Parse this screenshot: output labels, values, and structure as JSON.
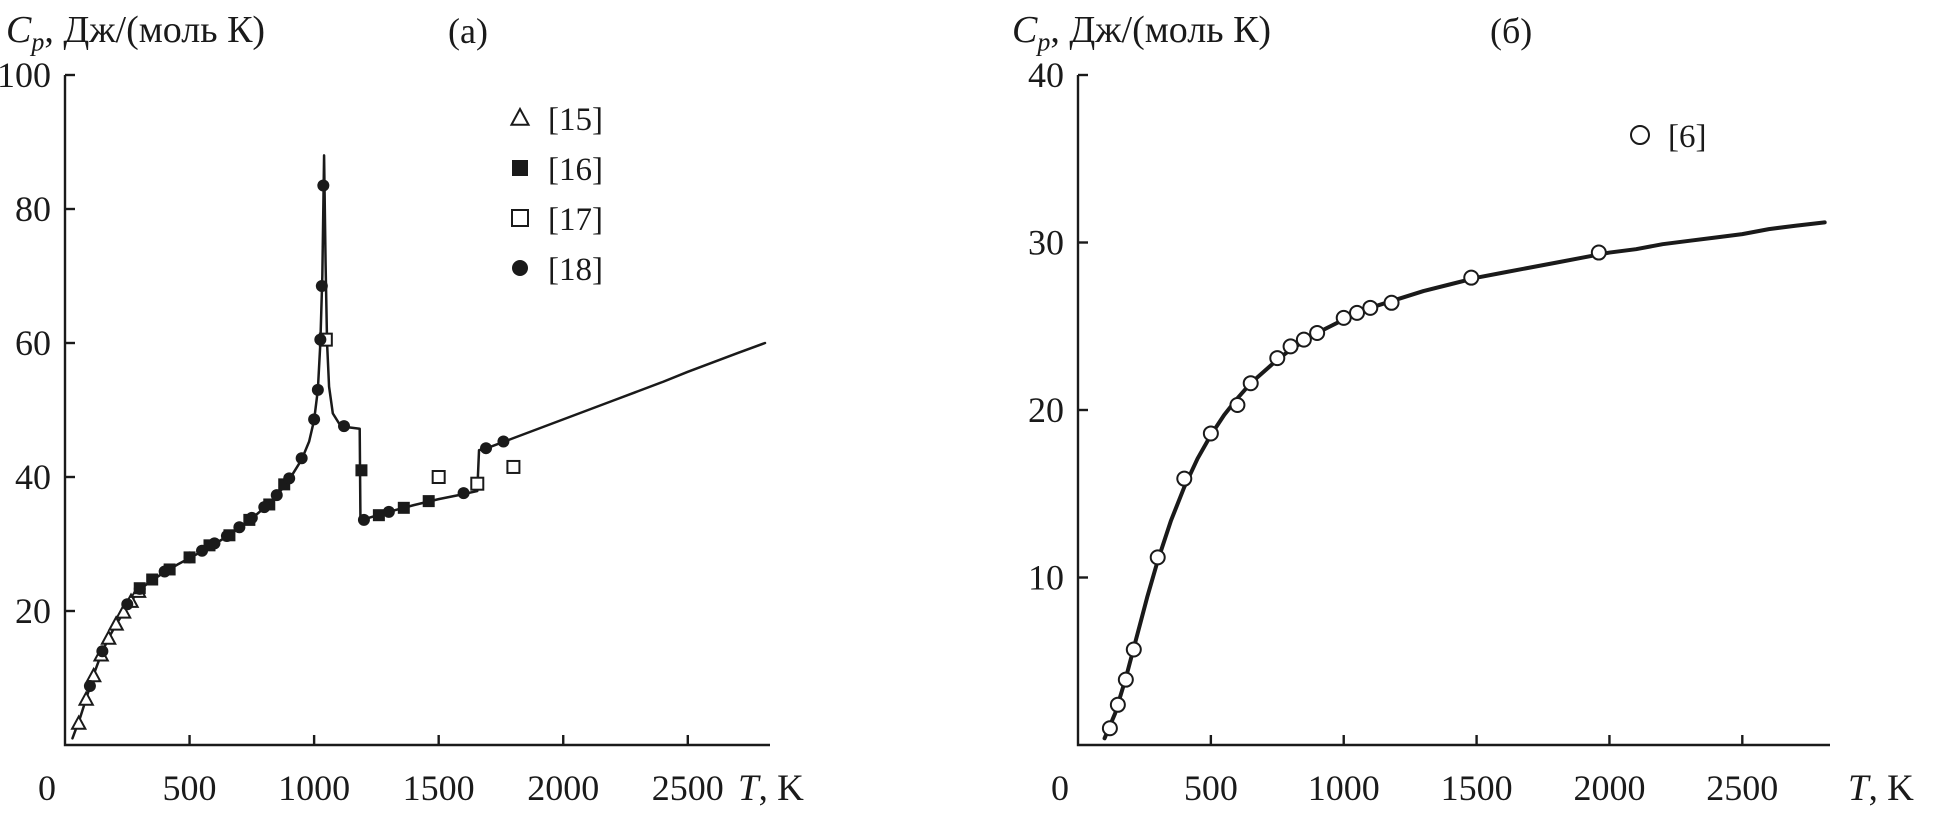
{
  "colors": {
    "ink": "#1a1a1a",
    "background": "#ffffff"
  },
  "chart_data": [
    {
      "type": "line+scatter",
      "panel_label": "(а)",
      "y_axis_title": {
        "symbol": "C",
        "subscript": "p",
        "rest": ", Дж/(моль К)"
      },
      "x_axis_title": {
        "symbol": "T",
        "rest": ", K"
      },
      "xlim": [
        0,
        2830
      ],
      "ylim": [
        0,
        100
      ],
      "xticks": [
        0,
        500,
        1000,
        1500,
        2000,
        2500
      ],
      "yticks": [
        20,
        40,
        60,
        80,
        100
      ],
      "legend": [
        {
          "marker": "triangle-open",
          "label": "[15]"
        },
        {
          "marker": "square-filled",
          "label": "[16]"
        },
        {
          "marker": "square-open",
          "label": "[17]"
        },
        {
          "marker": "circle-filled",
          "label": "[18]"
        }
      ],
      "curve": [
        [
          30,
          1
        ],
        [
          60,
          4
        ],
        [
          90,
          7.5
        ],
        [
          120,
          11
        ],
        [
          150,
          14
        ],
        [
          180,
          16.3
        ],
        [
          210,
          18.3
        ],
        [
          240,
          20
        ],
        [
          270,
          21.7
        ],
        [
          300,
          23.2
        ],
        [
          350,
          24.6
        ],
        [
          400,
          25.8
        ],
        [
          450,
          26.9
        ],
        [
          500,
          27.9
        ],
        [
          550,
          28.9
        ],
        [
          600,
          30
        ],
        [
          650,
          31.1
        ],
        [
          700,
          32.4
        ],
        [
          750,
          33.8
        ],
        [
          800,
          35.4
        ],
        [
          850,
          37.2
        ],
        [
          900,
          39.6
        ],
        [
          950,
          42.6
        ],
        [
          980,
          45.3
        ],
        [
          1000,
          48.5
        ],
        [
          1015,
          53
        ],
        [
          1025,
          60
        ],
        [
          1033,
          70
        ],
        [
          1040,
          88
        ],
        [
          1046,
          72
        ],
        [
          1052,
          60
        ],
        [
          1060,
          53.5
        ],
        [
          1075,
          49.5
        ],
        [
          1100,
          48
        ],
        [
          1140,
          47.4
        ],
        [
          1183,
          47.2
        ],
        [
          1186,
          33.5
        ],
        [
          1220,
          33.9
        ],
        [
          1300,
          34.8
        ],
        [
          1400,
          35.8
        ],
        [
          1500,
          36.7
        ],
        [
          1580,
          37.3
        ],
        [
          1655,
          37.9
        ],
        [
          1662,
          44
        ],
        [
          1700,
          44.4
        ],
        [
          1800,
          45.8
        ],
        [
          1900,
          47.2
        ],
        [
          2000,
          48.6
        ],
        [
          2100,
          50
        ],
        [
          2200,
          51.4
        ],
        [
          2300,
          52.8
        ],
        [
          2400,
          54.2
        ],
        [
          2500,
          55.7
        ],
        [
          2600,
          57.1
        ],
        [
          2700,
          58.5
        ],
        [
          2810,
          60
        ]
      ],
      "series": [
        {
          "name": "[15]",
          "marker": "triangle-open",
          "points": [
            [
              55,
              3.2
            ],
            [
              85,
              6.8
            ],
            [
              115,
              10.3
            ],
            [
              145,
              13.4
            ],
            [
              175,
              15.9
            ],
            [
              205,
              18
            ],
            [
              235,
              19.8
            ],
            [
              265,
              21.4
            ],
            [
              295,
              22.9
            ]
          ]
        },
        {
          "name": "[16]",
          "marker": "square-filled",
          "points": [
            [
              300,
              23.4
            ],
            [
              350,
              24.7
            ],
            [
              420,
              26.2
            ],
            [
              500,
              28
            ],
            [
              580,
              29.8
            ],
            [
              660,
              31.3
            ],
            [
              740,
              33.6
            ],
            [
              820,
              35.9
            ],
            [
              880,
              38.9
            ],
            [
              1190,
              41
            ],
            [
              1260,
              34.3
            ],
            [
              1360,
              35.4
            ],
            [
              1460,
              36.4
            ]
          ]
        },
        {
          "name": "[17]",
          "marker": "square-open",
          "points": [
            [
              1047,
              60.5
            ],
            [
              1500,
              40
            ],
            [
              1655,
              39
            ],
            [
              1800,
              41.5
            ]
          ]
        },
        {
          "name": "[18]",
          "marker": "circle-filled",
          "points": [
            [
              100,
              8.8
            ],
            [
              150,
              14
            ],
            [
              250,
              21
            ],
            [
              300,
              23.3
            ],
            [
              400,
              25.9
            ],
            [
              500,
              28
            ],
            [
              550,
              29
            ],
            [
              600,
              30.1
            ],
            [
              650,
              31.2
            ],
            [
              700,
              32.5
            ],
            [
              750,
              33.9
            ],
            [
              800,
              35.5
            ],
            [
              850,
              37.3
            ],
            [
              900,
              39.8
            ],
            [
              950,
              42.8
            ],
            [
              1000,
              48.6
            ],
            [
              1015,
              53
            ],
            [
              1025,
              60.5
            ],
            [
              1031,
              68.5
            ],
            [
              1037,
              83.5
            ],
            [
              1120,
              47.6
            ],
            [
              1200,
              33.6
            ],
            [
              1300,
              34.8
            ],
            [
              1600,
              37.6
            ],
            [
              1690,
              44.3
            ],
            [
              1760,
              45.3
            ]
          ]
        }
      ]
    },
    {
      "type": "line+scatter",
      "panel_label": "(б)",
      "y_axis_title": {
        "symbol": "C",
        "subscript": "p",
        "rest": ", Дж/(моль К)"
      },
      "x_axis_title": {
        "symbol": "T",
        "rest": ", K"
      },
      "xlim": [
        0,
        2830
      ],
      "ylim": [
        0,
        40
      ],
      "xticks": [
        0,
        500,
        1000,
        1500,
        2000,
        2500
      ],
      "yticks": [
        10,
        20,
        30,
        40
      ],
      "legend": [
        {
          "marker": "circle-open",
          "label": "[6]"
        }
      ],
      "curve": [
        [
          100,
          0.4
        ],
        [
          140,
          1.9
        ],
        [
          180,
          4
        ],
        [
          220,
          6.4
        ],
        [
          260,
          8.8
        ],
        [
          300,
          11
        ],
        [
          350,
          13.4
        ],
        [
          400,
          15.4
        ],
        [
          450,
          17.1
        ],
        [
          500,
          18.5
        ],
        [
          550,
          19.7
        ],
        [
          600,
          20.7
        ],
        [
          650,
          21.6
        ],
        [
          700,
          22.3
        ],
        [
          750,
          23
        ],
        [
          800,
          23.6
        ],
        [
          850,
          24.1
        ],
        [
          900,
          24.6
        ],
        [
          950,
          25
        ],
        [
          1000,
          25.4
        ],
        [
          1100,
          26.1
        ],
        [
          1200,
          26.6
        ],
        [
          1300,
          27.1
        ],
        [
          1400,
          27.5
        ],
        [
          1500,
          27.9
        ],
        [
          1600,
          28.2
        ],
        [
          1700,
          28.5
        ],
        [
          1800,
          28.8
        ],
        [
          1900,
          29.1
        ],
        [
          2000,
          29.4
        ],
        [
          2100,
          29.6
        ],
        [
          2200,
          29.9
        ],
        [
          2300,
          30.1
        ],
        [
          2400,
          30.3
        ],
        [
          2500,
          30.5
        ],
        [
          2600,
          30.8
        ],
        [
          2700,
          31
        ],
        [
          2810,
          31.2
        ]
      ],
      "series": [
        {
          "name": "[6]",
          "marker": "circle-open",
          "points": [
            [
              120,
              1
            ],
            [
              150,
              2.4
            ],
            [
              180,
              3.9
            ],
            [
              210,
              5.7
            ],
            [
              300,
              11.2
            ],
            [
              400,
              15.9
            ],
            [
              500,
              18.6
            ],
            [
              600,
              20.3
            ],
            [
              650,
              21.6
            ],
            [
              750,
              23.1
            ],
            [
              800,
              23.8
            ],
            [
              850,
              24.2
            ],
            [
              900,
              24.6
            ],
            [
              1000,
              25.5
            ],
            [
              1050,
              25.8
            ],
            [
              1100,
              26.1
            ],
            [
              1180,
              26.4
            ],
            [
              1480,
              27.9
            ],
            [
              1960,
              29.4
            ]
          ]
        }
      ]
    }
  ]
}
